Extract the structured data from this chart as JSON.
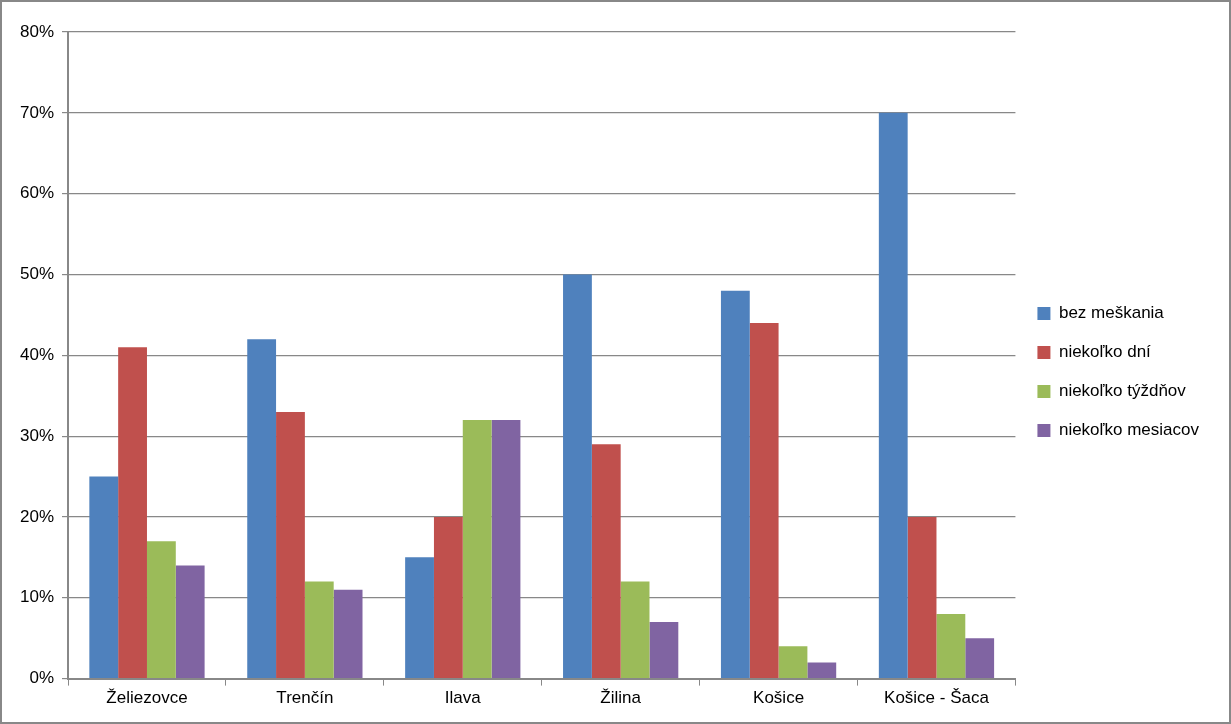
{
  "chart_data": {
    "type": "bar",
    "categories": [
      "Želiezovce",
      "Trenčín",
      "Ilava",
      "Žilina",
      "Košice",
      "Košice - Šaca"
    ],
    "series": [
      {
        "name": "bez meškania",
        "color": "#4f81bd",
        "values": [
          25,
          42,
          15,
          50,
          48,
          70
        ]
      },
      {
        "name": "niekoľko dní",
        "color": "#c0504d",
        "values": [
          41,
          33,
          20,
          29,
          44,
          20
        ]
      },
      {
        "name": "niekoľko týždňov",
        "color": "#9bbb59",
        "values": [
          17,
          12,
          32,
          12,
          4,
          8
        ]
      },
      {
        "name": "niekoľko mesiacov",
        "color": "#8064a2",
        "values": [
          14,
          11,
          32,
          7,
          2,
          5
        ]
      }
    ],
    "ylim": [
      0,
      80
    ],
    "yticks": [
      {
        "value": 0,
        "label": "0%"
      },
      {
        "value": 10,
        "label": "10%"
      },
      {
        "value": 20,
        "label": "20%"
      },
      {
        "value": 30,
        "label": "30%"
      },
      {
        "value": 40,
        "label": "40%"
      },
      {
        "value": 50,
        "label": "50%"
      },
      {
        "value": 60,
        "label": "60%"
      },
      {
        "value": 70,
        "label": "70%"
      },
      {
        "value": 80,
        "label": "80%"
      }
    ],
    "grid": "y",
    "legend": "right"
  }
}
